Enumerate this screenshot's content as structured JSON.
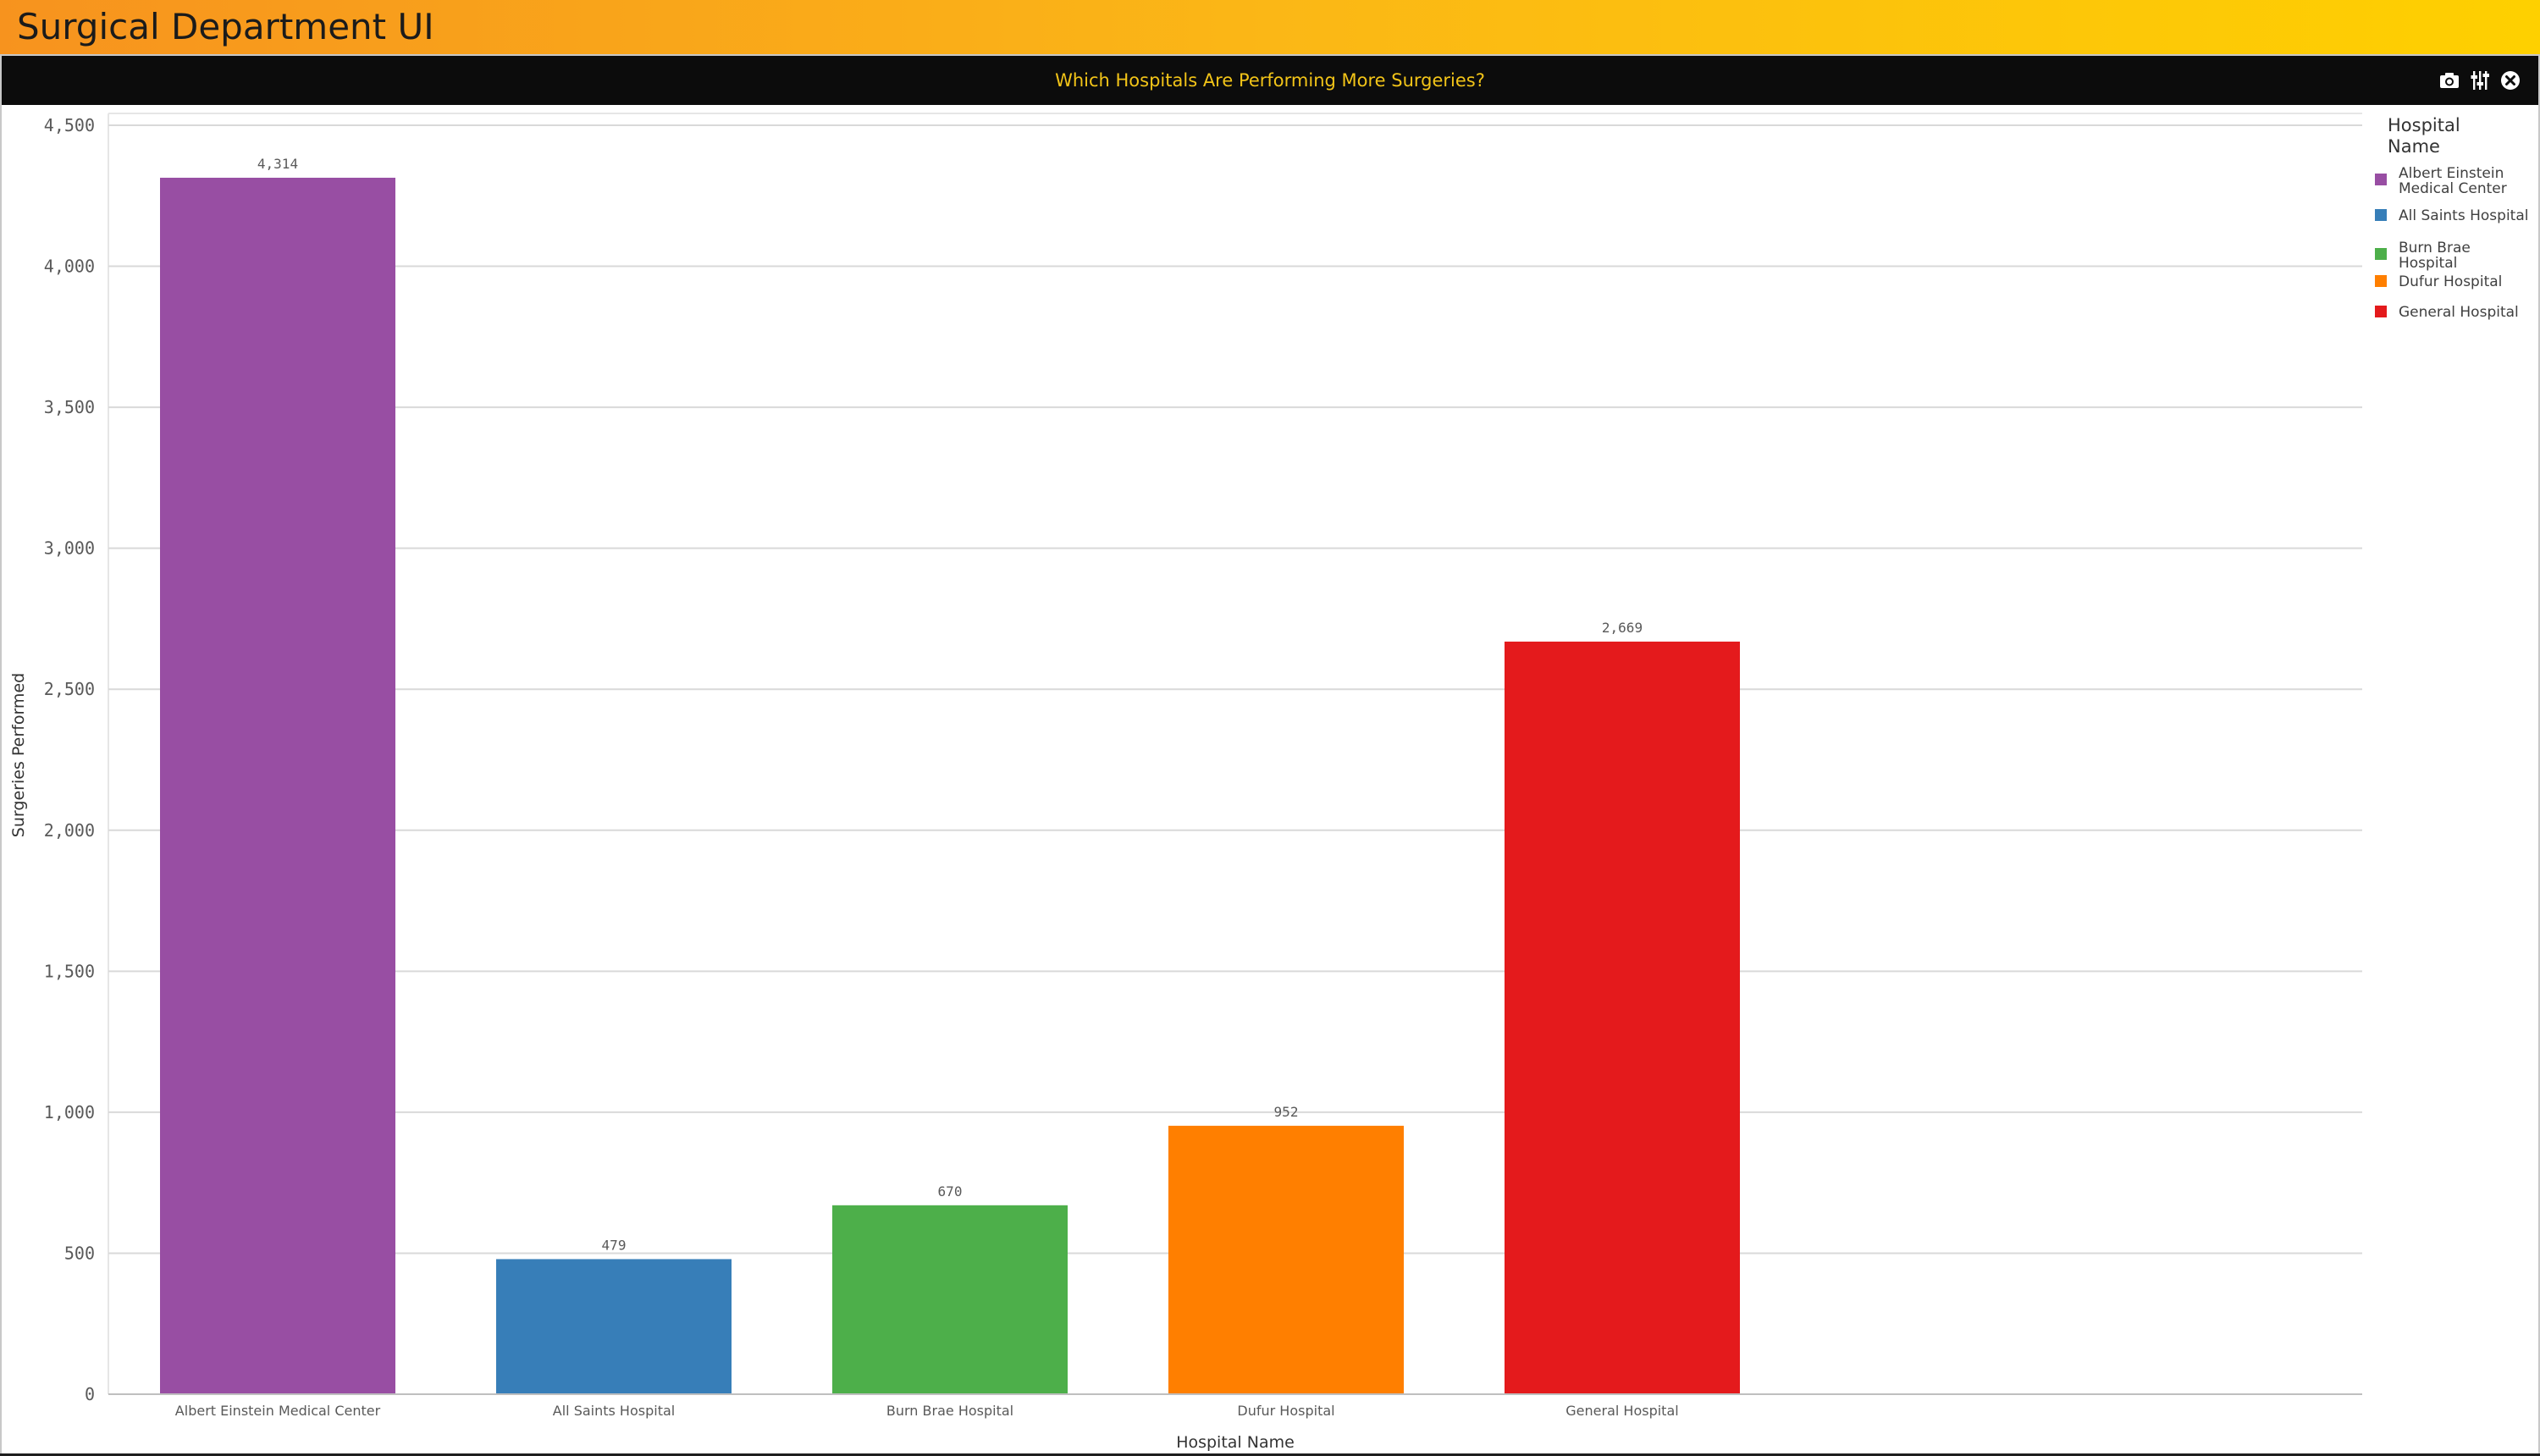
{
  "app": {
    "title": "Surgical Department UI"
  },
  "panel": {
    "title": "Which Hospitals Are Performing More Surgeries?",
    "tools": [
      {
        "name": "snapshot-icon"
      },
      {
        "name": "settings-sliders-icon"
      },
      {
        "name": "close-icon"
      }
    ]
  },
  "colors": {
    "header_start": "#f7931e",
    "header_end": "#fed000",
    "title_accent": "#f2c418"
  },
  "chart_data": {
    "type": "bar",
    "title": "Which Hospitals Are Performing More Surgeries?",
    "xlabel": "Hospital Name",
    "ylabel": "Surgeries Performed",
    "categories": [
      "Albert Einstein Medical Center",
      "All Saints Hospital",
      "Burn Brae Hospital",
      "Dufur Hospital",
      "General Hospital"
    ],
    "values": [
      4314,
      479,
      670,
      952,
      2669
    ],
    "data_labels": [
      "4,314",
      "479",
      "670",
      "952",
      "2,669"
    ],
    "colors": [
      "#984ea3",
      "#377eb8",
      "#4daf4a",
      "#ff7f00",
      "#e41a1c"
    ],
    "ylim": [
      0,
      4500
    ],
    "yticks": [
      0,
      500,
      1000,
      1500,
      2000,
      2500,
      3000,
      3500,
      4000,
      4500
    ],
    "ytick_labels": [
      "0",
      "500",
      "1,000",
      "1,500",
      "2,000",
      "2,500",
      "3,000",
      "3,500",
      "4,000",
      "4,500"
    ],
    "grid": true,
    "legend": {
      "title_lines": [
        "Hospital",
        "Name"
      ],
      "position": "right",
      "entries": [
        {
          "lines": [
            "Albert Einstein",
            "Medical Center"
          ],
          "color": "#984ea3"
        },
        {
          "lines": [
            "All Saints Hospital"
          ],
          "color": "#377eb8"
        },
        {
          "lines": [
            "Burn Brae",
            "Hospital"
          ],
          "color": "#4daf4a"
        },
        {
          "lines": [
            "Dufur Hospital"
          ],
          "color": "#ff7f00"
        },
        {
          "lines": [
            "General Hospital"
          ],
          "color": "#e41a1c"
        }
      ]
    }
  }
}
